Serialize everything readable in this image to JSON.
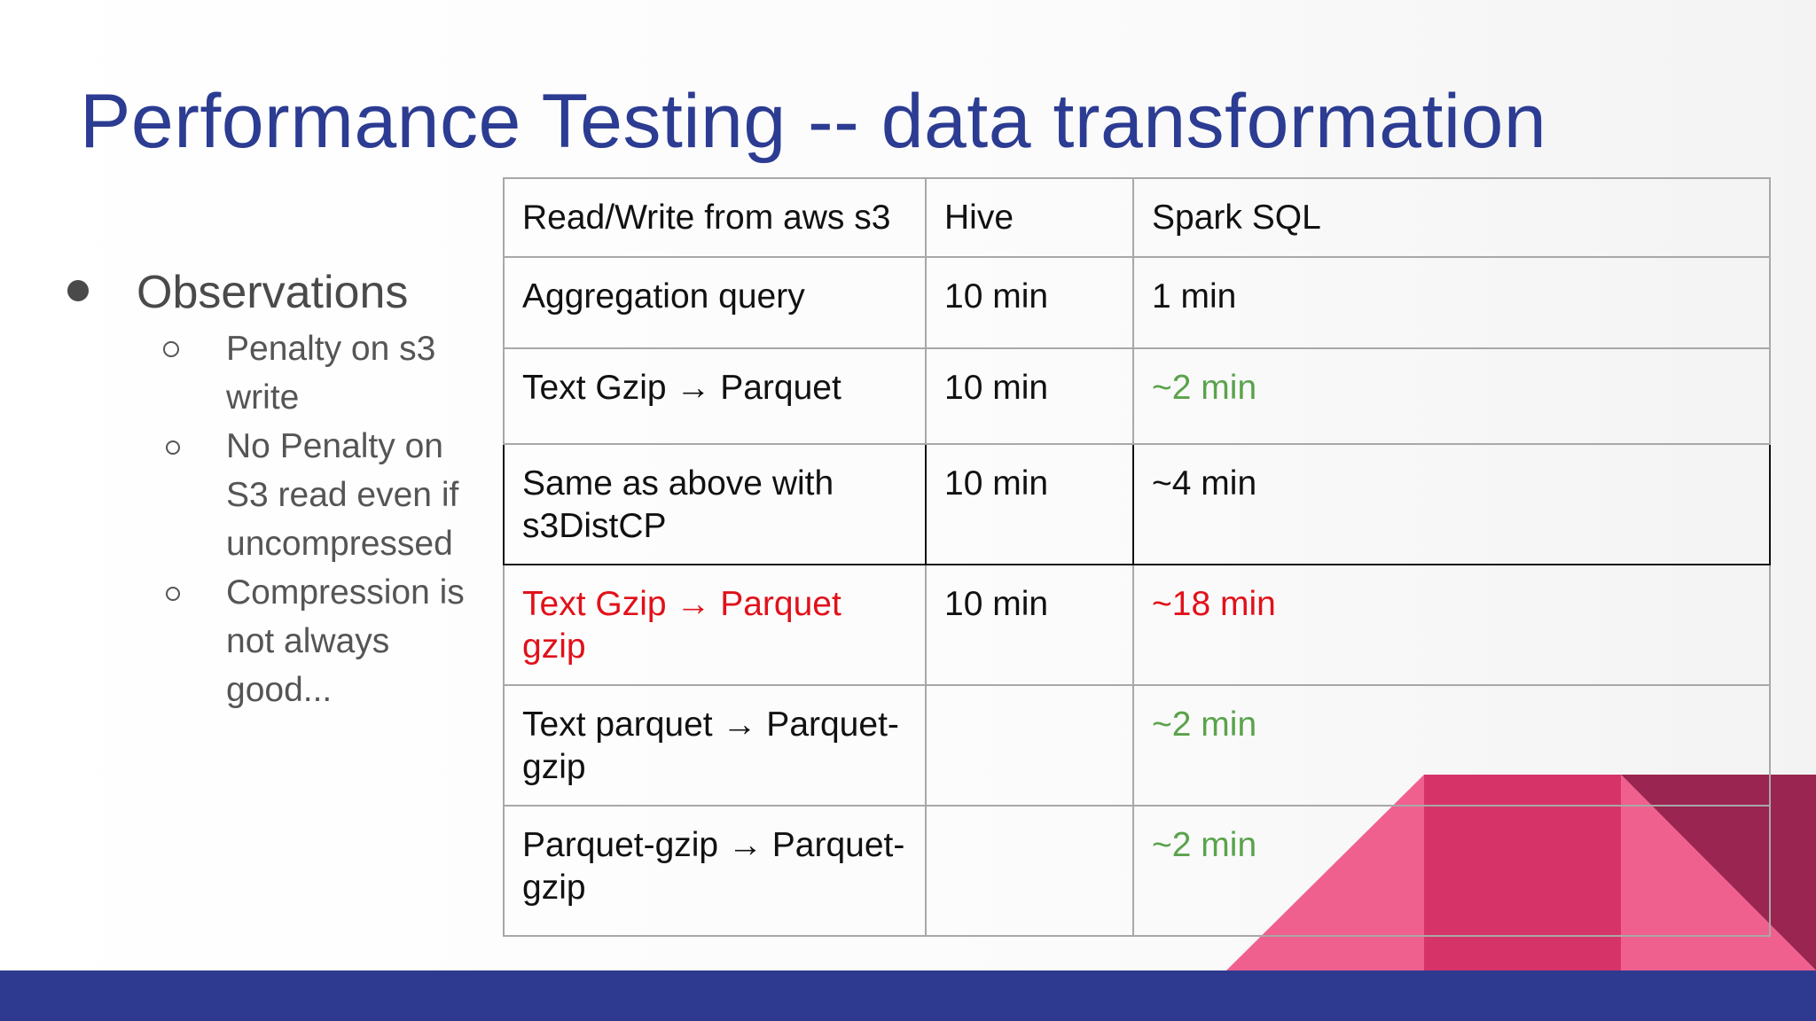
{
  "slide": {
    "title": "Performance Testing -- data transformation",
    "observations": {
      "heading": "Observations",
      "items": [
        "Penalty on s3 write",
        "No Penalty on S3 read  even if uncompressed",
        "Compression is not always good..."
      ]
    },
    "table": {
      "header": [
        "Read/Write from aws s3",
        "Hive",
        "Spark SQL"
      ],
      "rows": [
        [
          "Aggregation query",
          "10 min",
          "1 min"
        ],
        [
          "Text Gzip → Parquet",
          "10 min",
          "~2 min"
        ],
        [
          "Same as above with s3DistCP",
          "10 min",
          "~4 min"
        ],
        [
          "Text Gzip → Parquet gzip",
          "10 min",
          "~18 min"
        ],
        [
          "Text parquet → Parquet-gzip",
          "",
          "~2 min"
        ],
        [
          "Parquet-gzip → Parquet-gzip",
          "",
          "~2 min"
        ]
      ]
    },
    "colors": {
      "title": "#2c3c92",
      "green": "#5aa34b",
      "red": "#e1111a",
      "footer": "#2e3a8f",
      "pink": "#f0608f",
      "magenta": "#d63468",
      "maroon": "#9a2550"
    }
  }
}
